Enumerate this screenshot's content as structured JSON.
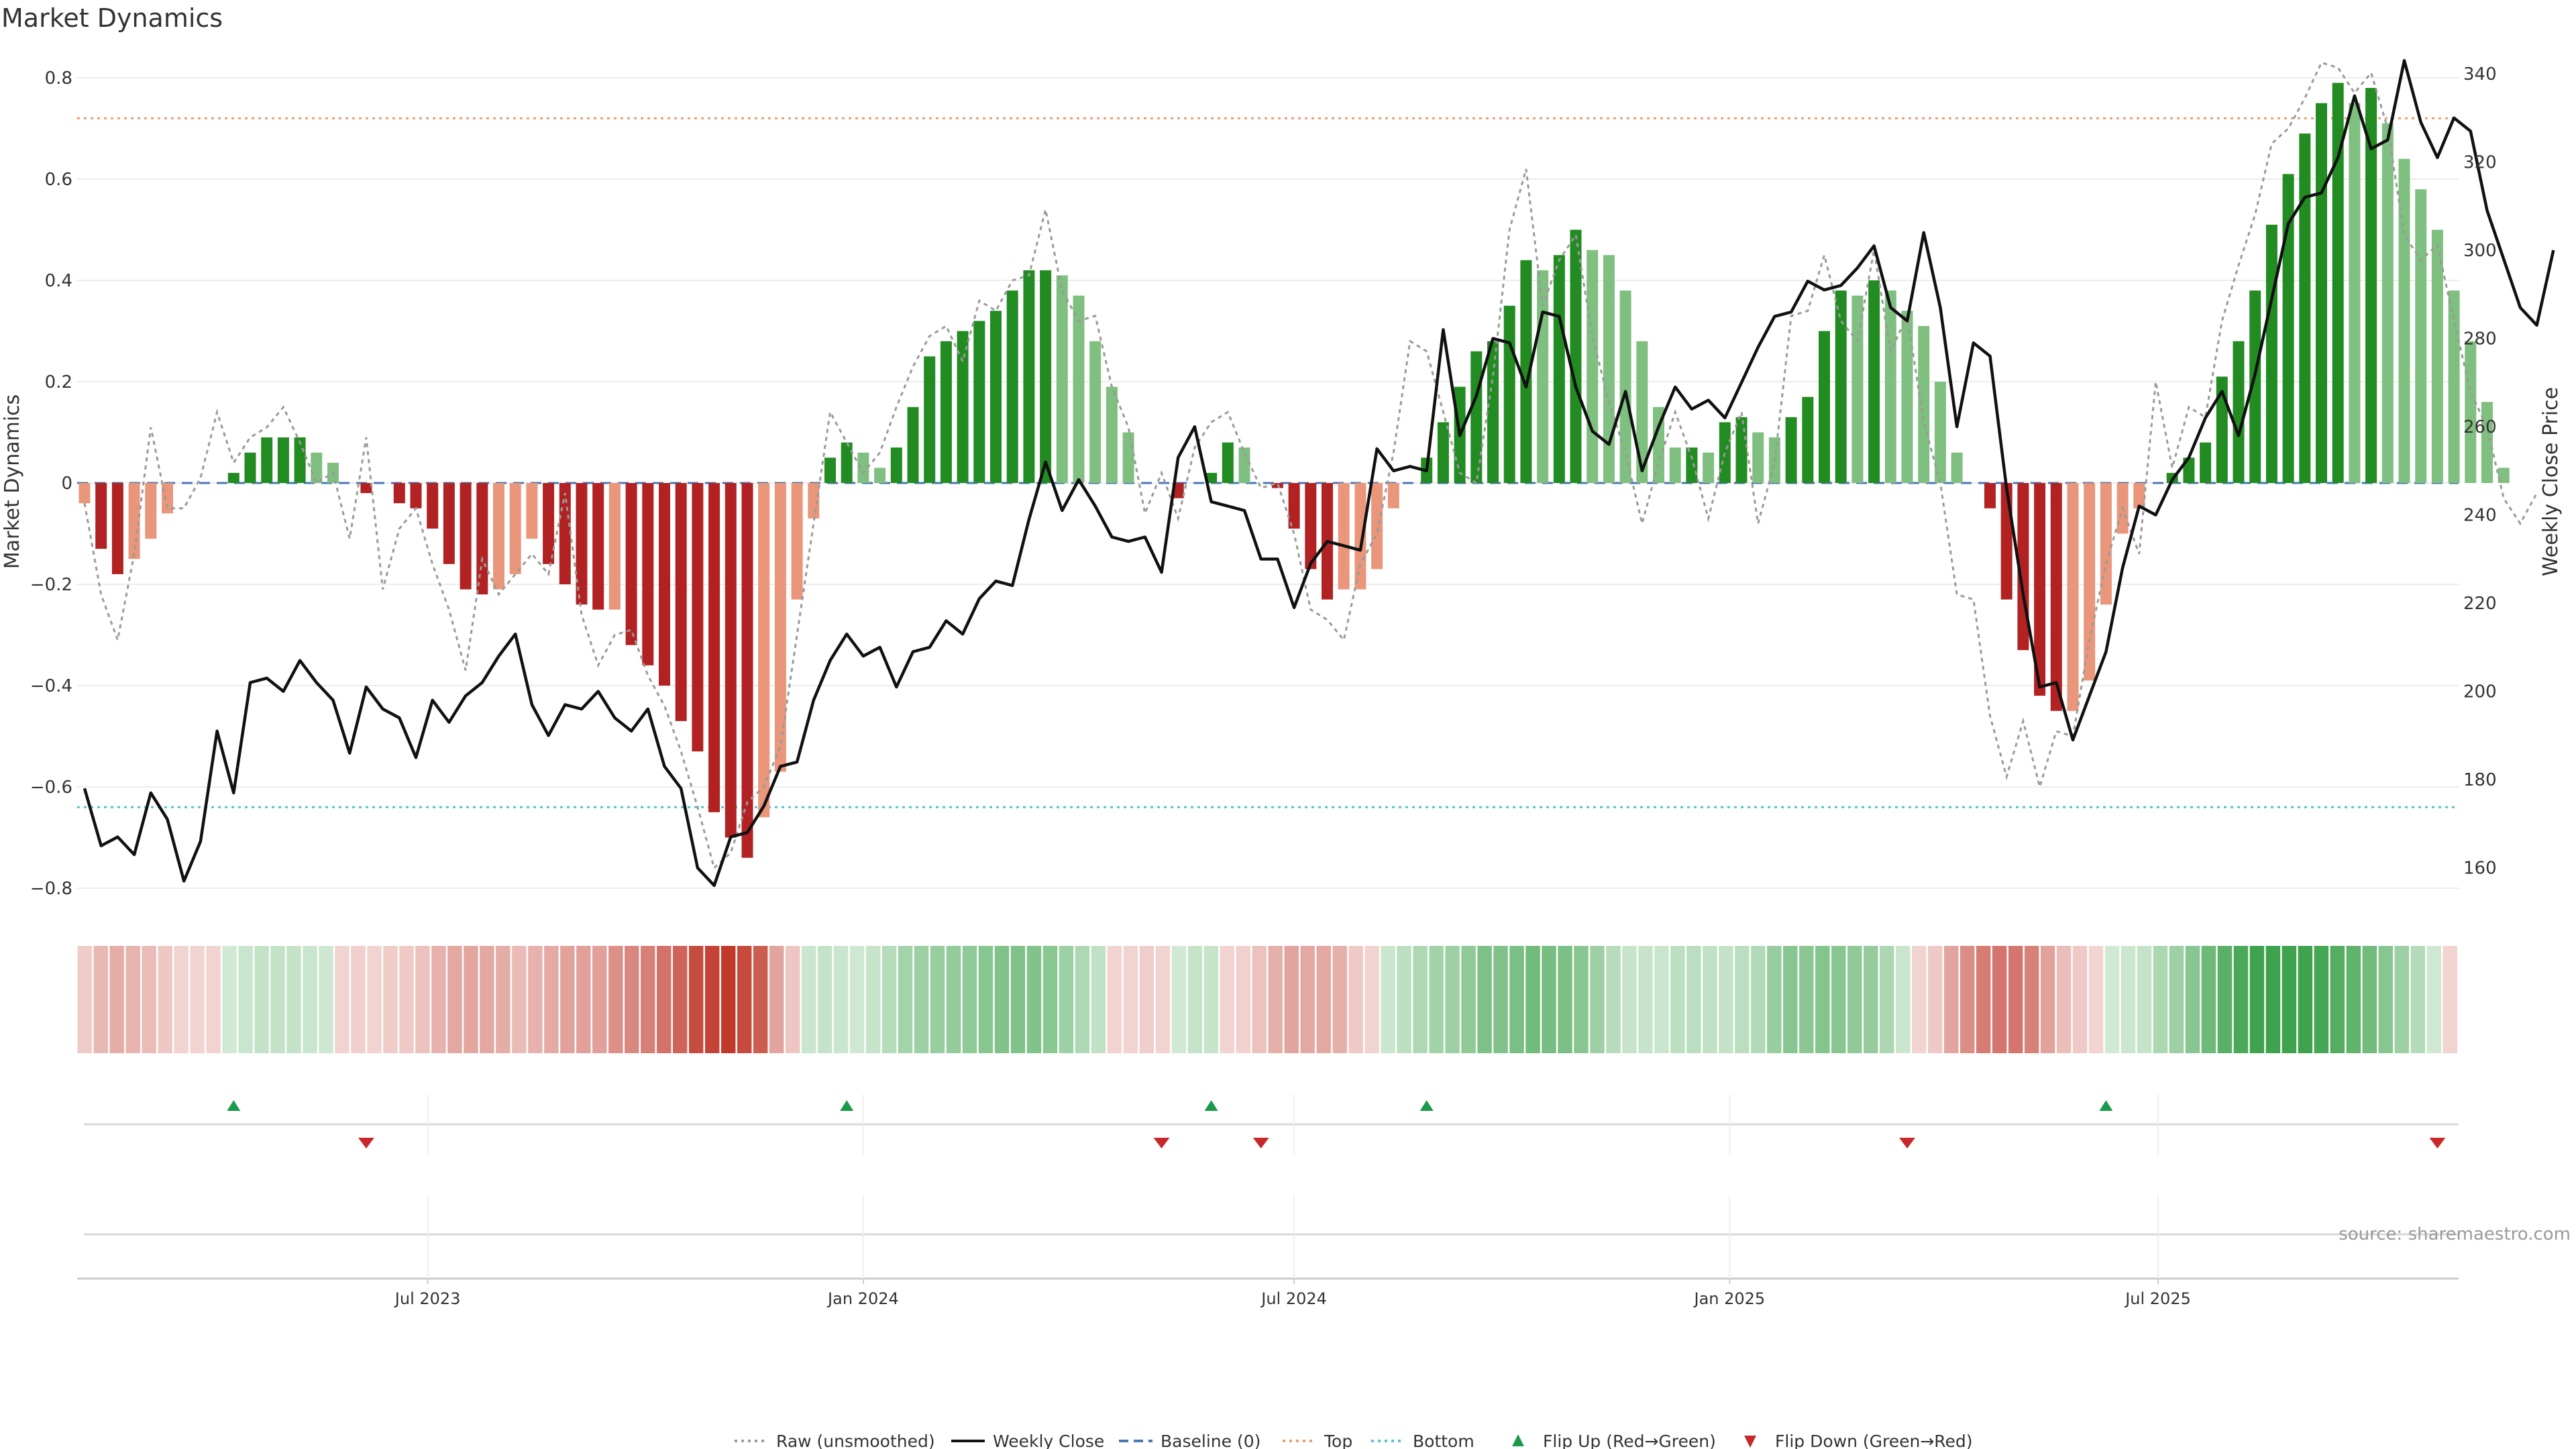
{
  "title": "Market Dynamics",
  "source_text": "source: sharemaestro.com",
  "legend": [
    {
      "label": "Raw (unsmoothed)",
      "icon": "dotted-gray-line",
      "color": "#9a9a9a"
    },
    {
      "label": "Weekly Close",
      "icon": "solid-black-line",
      "color": "#111111"
    },
    {
      "label": "Baseline (0)",
      "icon": "dashed-blue-line",
      "color": "#4a78b4"
    },
    {
      "label": "Top",
      "icon": "dotted-orange-line",
      "color": "#e8a070"
    },
    {
      "label": "Bottom",
      "icon": "dotted-cyan-line",
      "color": "#4fc4cc"
    },
    {
      "label": "Flip Up (Red→Green)",
      "icon": "triangle-up-green",
      "color": "#1a9a4a"
    },
    {
      "label": "Flip Down (Green→Red)",
      "icon": "triangle-down-red",
      "color": "#c8282a"
    }
  ],
  "colors": {
    "strong_green": "#228b22",
    "light_green": "#7fbf7f",
    "strong_red": "#b22222",
    "light_red": "#e9967a",
    "heat_green": "#3fa34d",
    "heat_red": "#c0392b"
  },
  "chart_data": {
    "type": "bar",
    "title": "Market Dynamics",
    "ylabel": "Market Dynamics",
    "y2label": "Weekly Close Price",
    "ylim": [
      -0.82,
      0.86
    ],
    "y2lim": [
      151,
      343
    ],
    "yticks": [
      "0.8",
      "0.6",
      "0.4",
      "0.2",
      "0",
      "−0.2",
      "−0.4",
      "−0.6",
      "−0.8"
    ],
    "y2ticks": [
      "340",
      "320",
      "300",
      "280",
      "260",
      "240",
      "220",
      "200",
      "180",
      "160"
    ],
    "xticks": [
      "Jul 2023",
      "Jan 2024",
      "Jul 2024",
      "Jan 2025",
      "Jul 2025"
    ],
    "x_range": [
      "2023-02-06",
      "2025-10-27"
    ],
    "reference_lines": {
      "top": 0.72,
      "bottom": -0.64,
      "baseline": 0
    },
    "grid": true,
    "legend_position": "bottom",
    "series": [
      {
        "name": "Market Dynamics",
        "kind": "bar",
        "values": [
          -0.04,
          -0.13,
          -0.18,
          -0.15,
          -0.11,
          -0.06,
          0.0,
          0.0,
          0.0,
          0.02,
          0.06,
          0.09,
          0.09,
          0.09,
          0.06,
          0.04,
          0.0,
          -0.02,
          0.0,
          -0.04,
          -0.05,
          -0.09,
          -0.16,
          -0.21,
          -0.22,
          -0.21,
          -0.18,
          -0.11,
          -0.16,
          -0.2,
          -0.24,
          -0.25,
          -0.25,
          -0.32,
          -0.36,
          -0.4,
          -0.47,
          -0.53,
          -0.65,
          -0.7,
          -0.74,
          -0.66,
          -0.57,
          -0.23,
          -0.07,
          0.05,
          0.08,
          0.06,
          0.03,
          0.07,
          0.15,
          0.25,
          0.28,
          0.3,
          0.32,
          0.34,
          0.38,
          0.42,
          0.42,
          0.41,
          0.37,
          0.28,
          0.19,
          0.1,
          0.0,
          0.0,
          -0.03,
          0.0,
          0.02,
          0.08,
          0.07,
          0.0,
          -0.01,
          -0.09,
          -0.17,
          -0.23,
          -0.21,
          -0.21,
          -0.17,
          -0.05,
          0.0,
          0.05,
          0.12,
          0.19,
          0.26,
          0.28,
          0.35,
          0.44,
          0.42,
          0.45,
          0.5,
          0.46,
          0.45,
          0.38,
          0.28,
          0.15,
          0.07,
          0.07,
          0.06,
          0.12,
          0.13,
          0.1,
          0.09,
          0.13,
          0.17,
          0.3,
          0.38,
          0.37,
          0.4,
          0.38,
          0.34,
          0.31,
          0.2,
          0.06,
          0.0,
          -0.05,
          -0.23,
          -0.33,
          -0.42,
          -0.45,
          -0.45,
          -0.39,
          -0.24,
          -0.1,
          -0.05,
          0.0,
          0.02,
          0.05,
          0.08,
          0.21,
          0.28,
          0.38,
          0.51,
          0.61,
          0.69,
          0.75,
          0.79,
          0.75,
          0.78,
          0.71,
          0.64,
          0.58,
          0.5,
          0.38,
          0.28,
          0.16,
          0.03,
          0.0
        ]
      },
      {
        "name": "Raw (unsmoothed)",
        "kind": "line",
        "values": [
          -0.04,
          -0.22,
          -0.31,
          -0.14,
          0.11,
          -0.05,
          -0.05,
          0.01,
          0.14,
          0.04,
          0.09,
          0.11,
          0.15,
          0.08,
          0.0,
          0.02,
          -0.11,
          0.09,
          -0.21,
          -0.09,
          -0.05,
          -0.16,
          -0.25,
          -0.37,
          -0.15,
          -0.22,
          -0.18,
          -0.14,
          -0.18,
          -0.02,
          -0.26,
          -0.36,
          -0.3,
          -0.29,
          -0.38,
          -0.44,
          -0.53,
          -0.64,
          -0.76,
          -0.73,
          -0.63,
          -0.6,
          -0.52,
          -0.3,
          -0.08,
          0.14,
          0.08,
          0.02,
          0.06,
          0.15,
          0.23,
          0.29,
          0.31,
          0.24,
          0.36,
          0.34,
          0.4,
          0.41,
          0.54,
          0.38,
          0.32,
          0.33,
          0.19,
          0.11,
          -0.06,
          0.02,
          -0.07,
          0.07,
          0.12,
          0.14,
          0.06,
          -0.01,
          0.0,
          -0.1,
          -0.25,
          -0.27,
          -0.31,
          -0.16,
          -0.1,
          0.06,
          0.28,
          0.26,
          0.14,
          0.02,
          0.0,
          0.21,
          0.5,
          0.62,
          0.35,
          0.44,
          0.49,
          0.29,
          0.16,
          0.06,
          -0.08,
          0.04,
          0.14,
          0.05,
          -0.07,
          0.06,
          0.14,
          -0.08,
          0.04,
          0.33,
          0.34,
          0.45,
          0.32,
          0.28,
          0.46,
          0.26,
          0.33,
          0.12,
          0.0,
          -0.22,
          -0.23,
          -0.46,
          -0.58,
          -0.47,
          -0.6,
          -0.49,
          -0.5,
          -0.31,
          -0.16,
          -0.05,
          -0.14,
          0.2,
          0.03,
          0.15,
          0.13,
          0.32,
          0.43,
          0.53,
          0.67,
          0.7,
          0.76,
          0.83,
          0.82,
          0.77,
          0.81,
          0.7,
          0.49,
          0.44,
          0.47,
          0.32,
          0.18,
          0.11,
          -0.03,
          -0.08,
          -0.02
        ]
      },
      {
        "name": "Weekly Close",
        "kind": "line",
        "axis": "right",
        "values": [
          178,
          165,
          167,
          163,
          177,
          171,
          157,
          166,
          191,
          177,
          202,
          203,
          200,
          207,
          202,
          198,
          186,
          201,
          196,
          194,
          185,
          198,
          193,
          199,
          202,
          208,
          213,
          197,
          190,
          197,
          196,
          200,
          194,
          191,
          196,
          183,
          178,
          160,
          156,
          167,
          168,
          174,
          183,
          184,
          198,
          207,
          213,
          208,
          210,
          201,
          209,
          210,
          216,
          213,
          221,
          225,
          224,
          239,
          252,
          241,
          248,
          242,
          235,
          234,
          235,
          227,
          253,
          260,
          243,
          242,
          241,
          230,
          230,
          219,
          229,
          234,
          233,
          232,
          255,
          250,
          251,
          250,
          282,
          258,
          267,
          280,
          279,
          269,
          286,
          285,
          269,
          259,
          256,
          268,
          250,
          260,
          269,
          264,
          266,
          262,
          270,
          278,
          285,
          286,
          293,
          291,
          292,
          296,
          301,
          287,
          284,
          304,
          287,
          260,
          279,
          276,
          246,
          222,
          201,
          202,
          189,
          199,
          209,
          228,
          242,
          240,
          248,
          253,
          262,
          268,
          258,
          272,
          289,
          306,
          312,
          313,
          321,
          335,
          323,
          325,
          343,
          329,
          321,
          330,
          327,
          309,
          298,
          287,
          283,
          300
        ],
        "ylabel": "Weekly Close Price"
      }
    ],
    "heatmap_values": [
      -0.04,
      -0.13,
      -0.18,
      -0.15,
      -0.11,
      -0.06,
      0.0,
      0.0,
      0.0,
      0.02,
      0.06,
      0.09,
      0.09,
      0.09,
      0.06,
      0.04,
      0.0,
      -0.02,
      0.0,
      -0.04,
      -0.05,
      -0.09,
      -0.16,
      -0.21,
      -0.22,
      -0.21,
      -0.18,
      -0.11,
      -0.16,
      -0.2,
      -0.24,
      -0.25,
      -0.25,
      -0.32,
      -0.36,
      -0.4,
      -0.47,
      -0.53,
      -0.65,
      -0.7,
      -0.74,
      -0.66,
      -0.57,
      -0.23,
      -0.07,
      0.05,
      0.08,
      0.06,
      0.03,
      0.07,
      0.15,
      0.25,
      0.28,
      0.3,
      0.32,
      0.34,
      0.38,
      0.42,
      0.42,
      0.41,
      0.37,
      0.28,
      0.19,
      0.1,
      0.0,
      0.0,
      -0.03,
      0.0,
      0.02,
      0.08,
      0.07,
      0.0,
      -0.01,
      -0.09,
      -0.17,
      -0.23,
      -0.21,
      -0.21,
      -0.17,
      -0.05,
      0.0,
      0.05,
      0.12,
      0.19,
      0.26,
      0.28,
      0.35,
      0.44,
      0.42,
      0.45,
      0.5,
      0.46,
      0.45,
      0.38,
      0.28,
      0.15,
      0.07,
      0.07,
      0.06,
      0.12,
      0.13,
      0.1,
      0.09,
      0.13,
      0.17,
      0.3,
      0.38,
      0.37,
      0.4,
      0.38,
      0.34,
      0.31,
      0.2,
      0.06,
      0.0,
      -0.05,
      -0.23,
      -0.33,
      -0.42,
      -0.45,
      -0.45,
      -0.39,
      -0.24,
      -0.1,
      -0.05,
      0.0,
      0.02,
      0.05,
      0.08,
      0.21,
      0.28,
      0.38,
      0.51,
      0.61,
      0.69,
      0.75,
      0.79,
      0.75,
      0.78,
      0.71,
      0.64,
      0.58,
      0.5,
      0.38,
      0.28,
      0.16,
      0.03,
      0.0
    ],
    "flip_up_dates": [
      "2023-04-10",
      "2023-12-25",
      "2024-05-27",
      "2024-08-26",
      "2025-06-09"
    ],
    "flip_down_dates": [
      "2023-06-05",
      "2024-05-06",
      "2024-06-17",
      "2025-03-17",
      "2025-10-27"
    ]
  }
}
